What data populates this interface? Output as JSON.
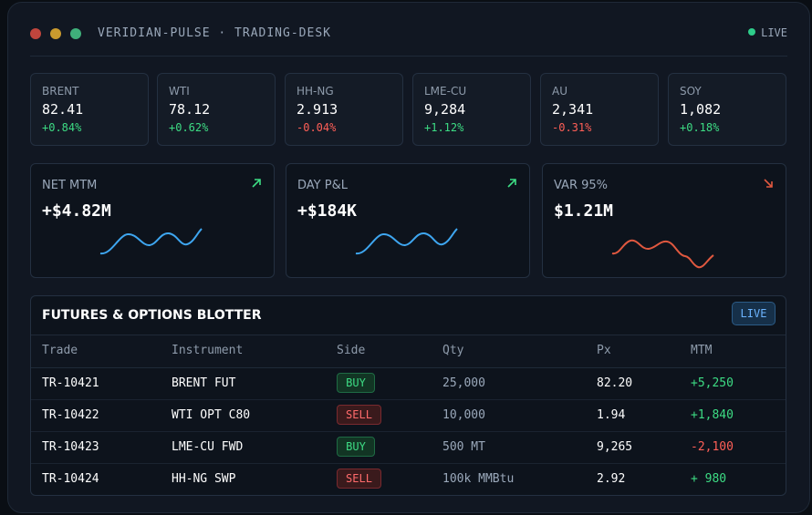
{
  "window": {
    "title": "VERIDIAN-PULSE · TRADING-DESK",
    "status_label": "LIVE",
    "dots": [
      "#c0453d",
      "#c99a2e",
      "#3fb07a"
    ],
    "status_color": "#2ecc8a"
  },
  "tickers": [
    {
      "symbol": "BRENT",
      "price": "82.41",
      "change": "+0.84%",
      "direction": "up"
    },
    {
      "symbol": "WTI",
      "price": "78.12",
      "change": "+0.62%",
      "direction": "up"
    },
    {
      "symbol": "HH-NG",
      "price": "2.913",
      "change": "-0.04%",
      "direction": "down"
    },
    {
      "symbol": "LME-CU",
      "price": "9,284",
      "change": "+1.12%",
      "direction": "up"
    },
    {
      "symbol": "AU",
      "price": "2,341",
      "change": "-0.31%",
      "direction": "down"
    },
    {
      "symbol": "SOY",
      "price": "1,082",
      "change": "+0.18%",
      "direction": "up"
    }
  ],
  "kpis": [
    {
      "label": "NET MTM",
      "value": "+$4.82M",
      "trend": "up",
      "trend_icon": "arrow-up-right-icon",
      "spark_color": "#3ea6f0"
    },
    {
      "label": "DAY P&L",
      "value": "+$184K",
      "trend": "up",
      "trend_icon": "arrow-up-right-icon",
      "spark_color": "#3ea6f0"
    },
    {
      "label": "VAR 95%",
      "value": "$1.21M",
      "trend": "down",
      "trend_icon": "arrow-down-right-icon",
      "spark_color": "#e0583f"
    }
  ],
  "blotter": {
    "title": "FUTURES & OPTIONS BLOTTER",
    "live_button": "LIVE",
    "columns": [
      "Trade",
      "Instrument",
      "Side",
      "Qty",
      "Px",
      "MTM"
    ],
    "rows": [
      {
        "trade": "TR-10421",
        "instrument": "BRENT FUT",
        "side": "BUY",
        "qty": "25,000",
        "px": "82.20",
        "mtm": "+5,250",
        "mtm_sign": "pos"
      },
      {
        "trade": "TR-10422",
        "instrument": "WTI OPT C80",
        "side": "SELL",
        "qty": "10,000",
        "px": "1.94",
        "mtm": "+1,840",
        "mtm_sign": "pos"
      },
      {
        "trade": "TR-10423",
        "instrument": "LME-CU FWD",
        "side": "BUY",
        "qty": "500 MT",
        "px": "9,265",
        "mtm": "-2,100",
        "mtm_sign": "neg"
      },
      {
        "trade": "TR-10424",
        "instrument": "HH-NG SWP",
        "side": "SELL",
        "qty": "100k MMBtu",
        "px": "2.92",
        "mtm": "+ 980",
        "mtm_sign": "pos"
      }
    ]
  },
  "colors": {
    "positive": "#3ddc84",
    "negative": "#ff5f57",
    "accent": "#3ea6f0"
  }
}
